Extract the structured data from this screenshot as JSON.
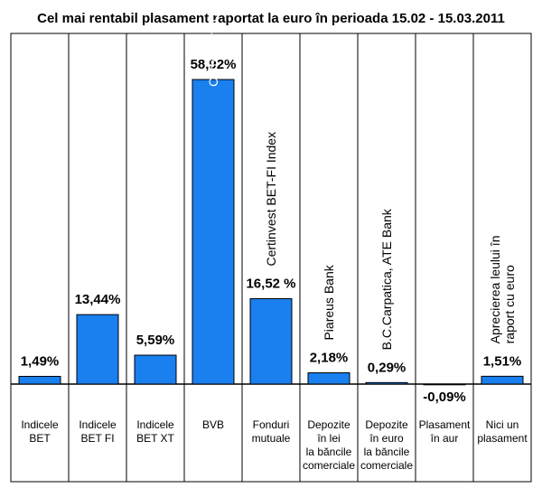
{
  "chart_data": {
    "type": "bar",
    "title": "Cel mai rentabil plasament raportat la euro în perioada 15.02 - 15.03.2011",
    "xlabel": "",
    "ylabel": "",
    "ylim": [
      -3,
      62
    ],
    "grid": false,
    "legend": "none",
    "bar_color": "#1a7fef",
    "categories": [
      [
        "Indicele",
        "BET"
      ],
      [
        "Indicele",
        "BET FI"
      ],
      [
        "Indicele",
        "BET XT"
      ],
      [
        "BVB"
      ],
      [
        "Fonduri",
        "mutuale"
      ],
      [
        "Depozite",
        "în lei",
        "la băncile",
        "comerciale"
      ],
      [
        "Depozite",
        "în euro",
        "la băncile",
        "comerciale"
      ],
      [
        "Plasament",
        "în aur"
      ],
      [
        "Nici un",
        "plasament"
      ]
    ],
    "values": [
      1.49,
      13.44,
      5.59,
      58.92,
      16.52,
      2.18,
      0.29,
      -0.09,
      1.51
    ],
    "value_labels": [
      "1,49%",
      "13,44%",
      "5,59%",
      "58,92%",
      "16,52 %",
      "2,18%",
      "0,29%",
      "-0,09%",
      "1,51%"
    ],
    "annotations": [
      [],
      [],
      [],
      [
        "Carbochim Cluj-Napoca"
      ],
      [
        "Certinvest BET-FI Index"
      ],
      [
        "Piareus Bank"
      ],
      [
        "B.C.Carpatica, ATE Bank"
      ],
      [],
      [
        "Aprecierea leului în",
        "raport cu euro"
      ]
    ]
  }
}
